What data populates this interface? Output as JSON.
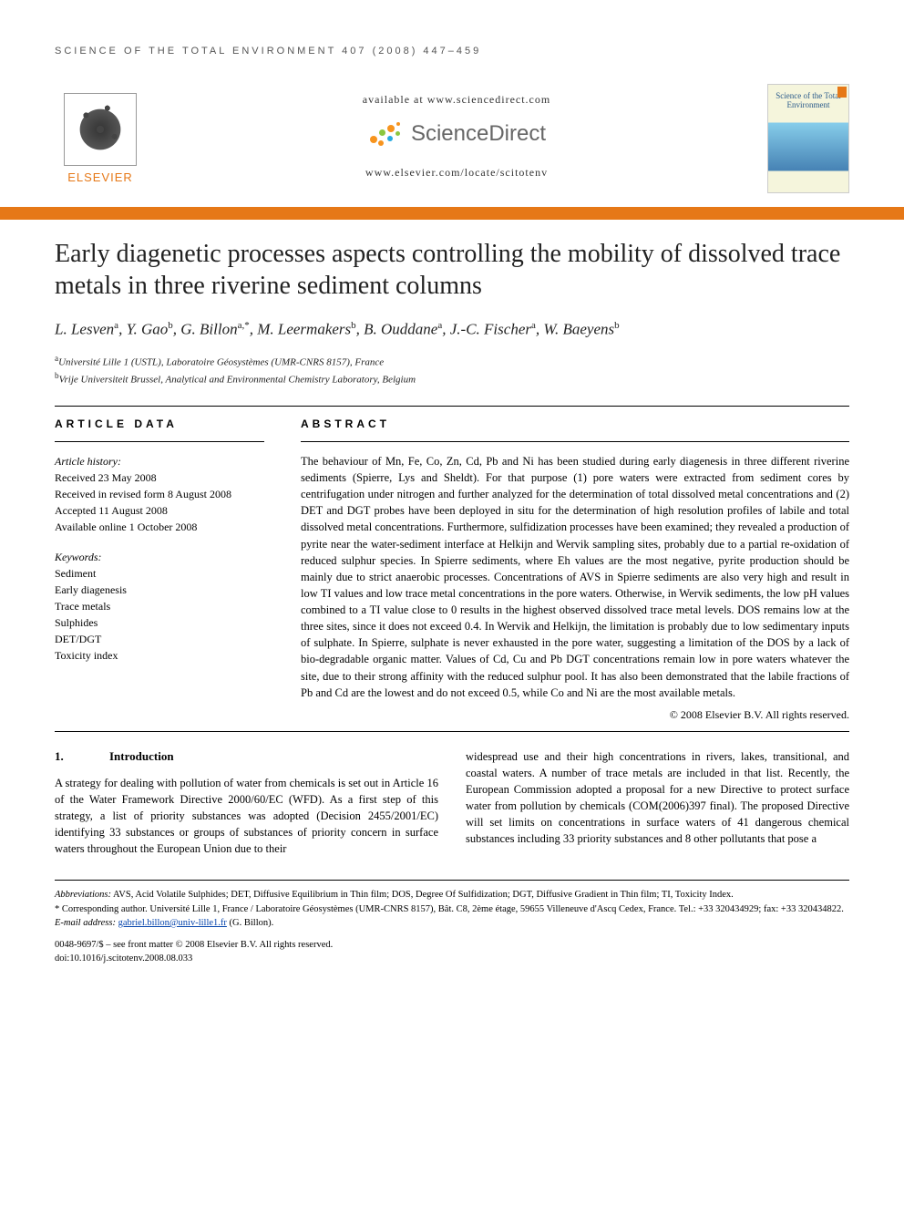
{
  "running_header": "SCIENCE OF THE TOTAL ENVIRONMENT 407 (2008) 447–459",
  "header": {
    "available": "available at www.sciencedirect.com",
    "sd_brand": "ScienceDirect",
    "journal_url": "www.elsevier.com/locate/scitotenv",
    "elsevier_word": "ELSEVIER",
    "cover_title": "Science of the Total Environment",
    "sd_dot_colors": {
      "orange": "#f7941e",
      "green": "#8cc63f",
      "blue": "#27aae1"
    }
  },
  "colors": {
    "accent_orange": "#e67817",
    "link_blue": "#0645ad",
    "text": "#000000",
    "background": "#ffffff"
  },
  "title": "Early diagenetic processes aspects controlling the mobility of dissolved trace metals in three riverine sediment columns",
  "authors_html": "L. Lesven<sup>a</sup>, Y. Gao<sup>b</sup>, G. Billon<sup>a,*</sup>, M. Leermakers<sup>b</sup>, B. Ouddane<sup>a</sup>, J.-C. Fischer<sup>a</sup>, W. Baeyens<sup>b</sup>",
  "affiliations": [
    "<sup>a</sup>Université Lille 1 (USTL), Laboratoire Géosystèmes (UMR-CNRS 8157), France",
    "<sup>b</sup>Vrije Universiteit Brussel, Analytical and Environmental Chemistry Laboratory, Belgium"
  ],
  "article_data_head": "ARTICLE DATA",
  "abstract_head": "ABSTRACT",
  "history": {
    "label": "Article history:",
    "lines": [
      "Received 23 May 2008",
      "Received in revised form 8 August 2008",
      "Accepted 11 August 2008",
      "Available online 1 October 2008"
    ]
  },
  "keywords": {
    "label": "Keywords:",
    "items": [
      "Sediment",
      "Early diagenesis",
      "Trace metals",
      "Sulphides",
      "DET/DGT",
      "Toxicity index"
    ]
  },
  "abstract": "The behaviour of Mn, Fe, Co, Zn, Cd, Pb and Ni has been studied during early diagenesis in three different riverine sediments (Spierre, Lys and Sheldt). For that purpose (1) pore waters were extracted from sediment cores by centrifugation under nitrogen and further analyzed for the determination of total dissolved metal concentrations and (2) DET and DGT probes have been deployed in situ for the determination of high resolution profiles of labile and total dissolved metal concentrations. Furthermore, sulfidization processes have been examined; they revealed a production of pyrite near the water-sediment interface at Helkijn and Wervik sampling sites, probably due to a partial re-oxidation of reduced sulphur species. In Spierre sediments, where Eh values are the most negative, pyrite production should be mainly due to strict anaerobic processes. Concentrations of AVS in Spierre sediments are also very high and result in low TI values and low trace metal concentrations in the pore waters. Otherwise, in Wervik sediments, the low pH values combined to a TI value close to 0 results in the highest observed dissolved trace metal levels. DOS remains low at the three sites, since it does not exceed 0.4. In Wervik and Helkijn, the limitation is probably due to low sedimentary inputs of sulphate. In Spierre, sulphate is never exhausted in the pore water, suggesting a limitation of the DOS by a lack of bio-degradable organic matter. Values of Cd, Cu and Pb DGT concentrations remain low in pore waters whatever the site, due to their strong affinity with the reduced sulphur pool. It has also been demonstrated that the labile fractions of Pb and Cd are the lowest and do not exceed 0.5, while Co and Ni are the most available metals.",
  "abstract_copyright": "© 2008 Elsevier B.V. All rights reserved.",
  "intro": {
    "num": "1.",
    "title": "Introduction",
    "col1": "A strategy for dealing with pollution of water from chemicals is set out in Article 16 of the Water Framework Directive 2000/60/EC (WFD). As a first step of this strategy, a list of priority substances was adopted (Decision 2455/2001/EC) identifying 33 substances or groups of substances of priority concern in surface waters throughout the European Union due to their",
    "col2": "widespread use and their high concentrations in rivers, lakes, transitional, and coastal waters. A number of trace metals are included in that list. Recently, the European Commission adopted a proposal for a new Directive to protect surface water from pollution by chemicals (COM(2006)397 final). The proposed Directive will set limits on concentrations in surface waters of 41 dangerous chemical substances including 33 priority substances and 8 other pollutants that pose a"
  },
  "footnotes": {
    "abbrev_label": "Abbreviations:",
    "abbrev": " AVS, Acid Volatile Sulphides; DET, Diffusive Equilibrium in Thin film; DOS, Degree Of Sulfidization; DGT, Diffusive Gradient in Thin film; TI, Toxicity Index.",
    "corr_label": "* Corresponding author.",
    "corr": " Université Lille 1, France / Laboratoire Géosystèmes (UMR-CNRS 8157), Bât. C8, 2ème étage, 59655 Villeneuve d'Ascq Cedex, France. Tel.: +33 320434929; fax: +33 320434822.",
    "email_label": "E-mail address:",
    "email": "gabriel.billon@univ-lille1.fr",
    "email_attrib": " (G. Billon)."
  },
  "doi": {
    "front_matter": "0048-9697/$ – see front matter © 2008 Elsevier B.V. All rights reserved.",
    "doi": "doi:10.1016/j.scitotenv.2008.08.033"
  }
}
